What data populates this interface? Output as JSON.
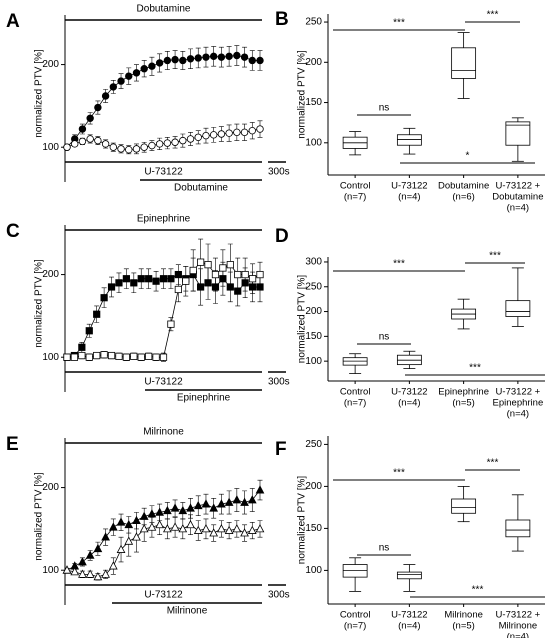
{
  "chart_data": [
    {
      "type": "line",
      "panel_label": "A",
      "ylabel": "normalized PTV [%]",
      "ylim": [
        70,
        260
      ],
      "yticks": [
        100,
        200
      ],
      "treatments": [
        "Dobutamine",
        "U-73122",
        "Dobutamine"
      ],
      "scale_bar": "300s",
      "series": [
        {
          "marker": "circle",
          "fill": "#000000",
          "values": [
            100,
            110,
            122,
            135,
            148,
            162,
            173,
            180,
            186,
            190,
            195,
            198,
            202,
            205,
            206,
            205,
            207,
            208,
            209,
            210,
            209,
            210,
            211,
            209,
            205,
            205
          ],
          "errors": [
            3,
            5,
            6,
            7,
            8,
            8,
            8,
            9,
            10,
            10,
            10,
            11,
            11,
            11,
            11,
            11,
            12,
            12,
            12,
            12,
            12,
            12,
            12,
            12,
            12,
            12
          ]
        },
        {
          "marker": "circle",
          "fill": "#ffffff",
          "values": [
            100,
            104,
            107,
            110,
            108,
            104,
            100,
            98,
            97,
            98,
            100,
            102,
            104,
            105,
            106,
            108,
            110,
            112,
            114,
            115,
            116,
            117,
            118,
            118,
            120,
            122
          ],
          "errors": [
            2,
            3,
            4,
            5,
            5,
            5,
            5,
            5,
            5,
            6,
            6,
            6,
            7,
            7,
            7,
            8,
            8,
            8,
            9,
            9,
            9,
            10,
            10,
            10,
            10,
            10
          ]
        }
      ]
    },
    {
      "type": "box",
      "panel_label": "B",
      "ylabel": "normalized PTV [%]",
      "ylim": [
        60,
        260
      ],
      "yticks": [
        100,
        150,
        200,
        250
      ],
      "categories": [
        [
          "Control",
          "(n=7)"
        ],
        [
          "U-73122",
          "(n=4)"
        ],
        [
          "Dobutamine",
          "(n=6)"
        ],
        [
          "U-73122 +",
          "Dobutamine",
          "(n=4)"
        ]
      ],
      "boxes": [
        {
          "min": 85,
          "q1": 93,
          "median": 100,
          "q3": 107,
          "max": 114
        },
        {
          "min": 86,
          "q1": 97,
          "median": 104,
          "q3": 110,
          "max": 118
        },
        {
          "min": 155,
          "q1": 180,
          "median": 190,
          "q3": 218,
          "max": 237
        },
        {
          "min": 77,
          "q1": 97,
          "median": 122,
          "q3": 126,
          "max": 131
        }
      ],
      "annotations": [
        "***",
        "***",
        "ns",
        "*"
      ]
    },
    {
      "type": "line",
      "panel_label": "C",
      "ylabel": "normalized PTV [%]",
      "ylim": [
        70,
        260
      ],
      "yticks": [
        100,
        200
      ],
      "treatments": [
        "Epinephrine",
        "U-73122",
        "Epinephrine"
      ],
      "scale_bar": "300s",
      "series": [
        {
          "marker": "square",
          "fill": "#000000",
          "values": [
            100,
            102,
            112,
            132,
            152,
            172,
            185,
            190,
            195,
            190,
            195,
            195,
            192,
            195,
            195,
            200,
            195,
            200,
            185,
            190,
            185,
            195,
            185,
            180,
            190,
            185,
            185
          ],
          "errors": [
            3,
            4,
            6,
            8,
            10,
            12,
            12,
            12,
            12,
            12,
            12,
            12,
            12,
            12,
            12,
            12,
            15,
            20,
            22,
            20,
            20,
            20,
            18,
            18,
            18,
            18,
            18
          ]
        },
        {
          "marker": "square",
          "fill": "#ffffff",
          "values": [
            100,
            100,
            102,
            100,
            102,
            103,
            102,
            101,
            100,
            101,
            100,
            101,
            100,
            100,
            140,
            182,
            192,
            205,
            215,
            212,
            200,
            208,
            212,
            200,
            200,
            195,
            200
          ],
          "errors": [
            3,
            3,
            4,
            4,
            4,
            4,
            4,
            4,
            4,
            4,
            4,
            4,
            4,
            5,
            8,
            15,
            18,
            25,
            28,
            25,
            20,
            22,
            25,
            20,
            20,
            18,
            15
          ]
        }
      ]
    },
    {
      "type": "box",
      "panel_label": "D",
      "ylabel": "normalized PTV [%]",
      "ylim": [
        60,
        310
      ],
      "yticks": [
        100,
        150,
        200,
        250,
        300
      ],
      "categories": [
        [
          "Control",
          "(n=7)"
        ],
        [
          "U-73122",
          "(n=4)"
        ],
        [
          "Epinephrine",
          "(n=5)"
        ],
        [
          "U-73122 +",
          "Epinephrine",
          "(n=4)"
        ]
      ],
      "boxes": [
        {
          "min": 75,
          "q1": 92,
          "median": 100,
          "q3": 107,
          "max": 115
        },
        {
          "min": 85,
          "q1": 93,
          "median": 102,
          "q3": 112,
          "max": 120
        },
        {
          "min": 165,
          "q1": 185,
          "median": 195,
          "q3": 205,
          "max": 225
        },
        {
          "min": 170,
          "q1": 190,
          "median": 200,
          "q3": 222,
          "max": 288
        }
      ],
      "annotations": [
        "***",
        "***",
        "ns",
        "***"
      ]
    },
    {
      "type": "line",
      "panel_label": "E",
      "ylabel": "normalized PTV [%]",
      "ylim": [
        70,
        260
      ],
      "yticks": [
        100,
        200
      ],
      "treatments": [
        "Milrinone",
        "U-73122",
        "Milrinone"
      ],
      "scale_bar": "300s",
      "series": [
        {
          "marker": "triangle",
          "fill": "#000000",
          "values": [
            100,
            105,
            110,
            118,
            126,
            140,
            152,
            158,
            155,
            160,
            165,
            168,
            170,
            172,
            175,
            172,
            175,
            178,
            180,
            175,
            180,
            182,
            185,
            182,
            185,
            197
          ],
          "errors": [
            2,
            3,
            5,
            6,
            8,
            10,
            10,
            10,
            10,
            10,
            10,
            10,
            10,
            10,
            10,
            10,
            12,
            12,
            12,
            12,
            12,
            14,
            14,
            14,
            14,
            12
          ]
        },
        {
          "marker": "triangle",
          "fill": "#ffffff",
          "values": [
            100,
            98,
            95,
            95,
            92,
            95,
            105,
            125,
            135,
            140,
            150,
            152,
            155,
            150,
            152,
            150,
            155,
            148,
            150,
            145,
            150,
            148,
            150,
            145,
            148,
            150
          ],
          "errors": [
            2,
            3,
            4,
            4,
            4,
            5,
            10,
            15,
            18,
            18,
            15,
            12,
            12,
            12,
            12,
            12,
            12,
            12,
            12,
            10,
            10,
            10,
            10,
            10,
            10,
            10
          ]
        }
      ]
    },
    {
      "type": "box",
      "panel_label": "F",
      "ylabel": "normalized PTV [%]",
      "ylim": [
        60,
        260
      ],
      "yticks": [
        100,
        150,
        200,
        250
      ],
      "categories": [
        [
          "Control",
          "(n=7)"
        ],
        [
          "U-73122",
          "(n=4)"
        ],
        [
          "Milrinone",
          "(n=5)"
        ],
        [
          "U-73122 +",
          "Milrinone",
          "(n=4)"
        ]
      ],
      "boxes": [
        {
          "min": 75,
          "q1": 92,
          "median": 100,
          "q3": 107,
          "max": 115
        },
        {
          "min": 75,
          "q1": 90,
          "median": 95,
          "q3": 98,
          "max": 107
        },
        {
          "min": 158,
          "q1": 168,
          "median": 175,
          "q3": 185,
          "max": 200
        },
        {
          "min": 123,
          "q1": 140,
          "median": 148,
          "q3": 160,
          "max": 190
        }
      ],
      "annotations": [
        "***",
        "***",
        "ns",
        "***"
      ]
    }
  ]
}
